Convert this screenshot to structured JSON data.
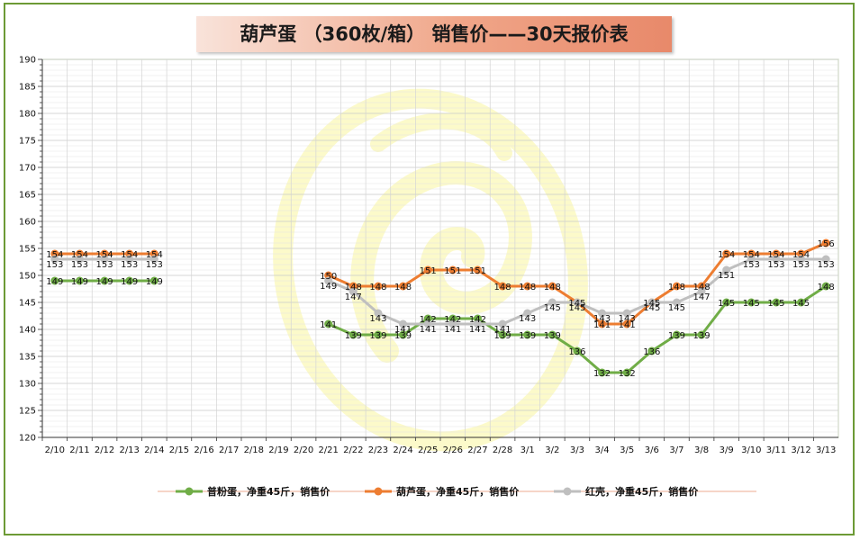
{
  "title": "葫芦蛋 （360枚/箱） 销售价——30天报价表",
  "chart_data": {
    "type": "line",
    "title": "葫芦蛋 （360枚/箱） 销售价——30天报价表",
    "xlabel": "",
    "ylabel": "",
    "ylim": [
      120,
      190
    ],
    "yticks": [
      120,
      125,
      130,
      135,
      140,
      145,
      150,
      155,
      160,
      165,
      170,
      175,
      180,
      185,
      190
    ],
    "grid": true,
    "legend_position": "bottom",
    "categories": [
      "2/10",
      "2/11",
      "2/12",
      "2/13",
      "2/14",
      "2/15",
      "2/16",
      "2/17",
      "2/18",
      "2/19",
      "2/20",
      "2/21",
      "2/22",
      "2/23",
      "2/24",
      "2/25",
      "2/26",
      "2/27",
      "2/28",
      "3/1",
      "3/2",
      "3/3",
      "3/4",
      "3/5",
      "3/6",
      "3/7",
      "3/8",
      "3/9",
      "3/10",
      "3/11",
      "3/12",
      "3/13"
    ],
    "series": [
      {
        "name": "普粉蛋，净重45斤，销售价",
        "color": "#70ad47",
        "values": [
          149,
          149,
          149,
          149,
          149,
          null,
          null,
          null,
          null,
          null,
          null,
          141,
          139,
          139,
          139,
          142,
          142,
          142,
          139,
          139,
          139,
          136,
          132,
          132,
          136,
          139,
          139,
          145,
          145,
          145,
          145,
          148
        ]
      },
      {
        "name": "葫芦蛋，净重45斤，销售价",
        "color": "#ed7d31",
        "values": [
          154,
          154,
          154,
          154,
          154,
          null,
          null,
          null,
          null,
          null,
          null,
          150,
          148,
          148,
          148,
          151,
          151,
          151,
          148,
          148,
          148,
          145,
          141,
          141,
          145,
          148,
          148,
          154,
          154,
          154,
          154,
          156
        ]
      },
      {
        "name": "红壳，净重45斤，销售价",
        "color": "#bfbfbf",
        "values": [
          153,
          153,
          153,
          153,
          153,
          null,
          null,
          null,
          null,
          null,
          null,
          149,
          147,
          143,
          141,
          141,
          141,
          141,
          141,
          143,
          145,
          145,
          143,
          143,
          145,
          145,
          147,
          151,
          153,
          153,
          153,
          153
        ]
      }
    ]
  }
}
